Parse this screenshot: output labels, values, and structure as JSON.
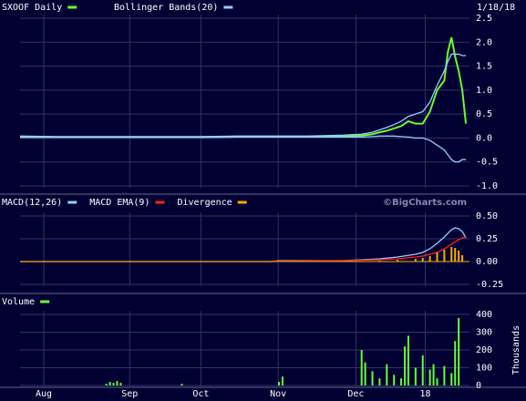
{
  "chart_data": [
    {
      "type": "line",
      "title": "SXOOF Daily",
      "date": "1/18/18",
      "x": [
        0,
        10,
        20,
        30,
        40,
        50,
        60,
        70,
        80,
        90,
        95,
        98,
        100,
        102,
        104,
        106,
        108,
        110,
        112,
        114,
        116,
        118,
        119,
        120,
        121,
        122,
        123,
        124
      ],
      "series": [
        {
          "name": "SXOOF Daily",
          "color": "#66ff33",
          "values": [
            0.03,
            0.02,
            0.02,
            0.02,
            0.02,
            0.02,
            0.03,
            0.03,
            0.03,
            0.04,
            0.05,
            0.08,
            0.12,
            0.15,
            0.2,
            0.25,
            0.35,
            0.3,
            0.3,
            0.55,
            1.0,
            1.2,
            1.8,
            2.1,
            1.7,
            1.4,
            1.0,
            0.3
          ]
        },
        {
          "name": "Bollinger Bands(20)",
          "color": "#99ccff",
          "values": [
            0.04,
            0.03,
            0.03,
            0.03,
            0.03,
            0.03,
            0.04,
            0.04,
            0.04,
            0.06,
            0.08,
            0.12,
            0.17,
            0.22,
            0.28,
            0.35,
            0.45,
            0.5,
            0.55,
            0.75,
            1.1,
            1.4,
            1.6,
            1.75,
            1.75,
            1.75,
            1.72,
            1.72
          ]
        },
        {
          "color": "#99ccff",
          "values": [
            0.01,
            0.01,
            0.01,
            0.01,
            0.01,
            0.01,
            0.02,
            0.02,
            0.02,
            0.02,
            0.02,
            0.03,
            0.04,
            0.04,
            0.04,
            0.03,
            0.02,
            0,
            0,
            -0.05,
            -0.15,
            -0.25,
            -0.35,
            -0.45,
            -0.5,
            -0.5,
            -0.45,
            -0.45
          ]
        }
      ],
      "ylim": [
        -1.0,
        2.5
      ],
      "yticks": [
        2.5,
        {
          "value": 2,
          "label": "2.0"
        },
        1.5,
        {
          "value": 1,
          "label": "1.0"
        },
        0.5,
        {
          "value": 0,
          "label": "0.0"
        },
        -0.5,
        {
          "value": -1,
          "label": "-1.0"
        }
      ]
    },
    {
      "type": "line",
      "watermark": "©BigCharts.com",
      "x": [
        0,
        70,
        72,
        90,
        100,
        105,
        110,
        112,
        114,
        116,
        118,
        120,
        121,
        122,
        123,
        124
      ],
      "series": [
        {
          "name": "MACD(12,26)",
          "color": "#99ccff",
          "values": [
            0,
            0,
            0.01,
            0.01,
            0.03,
            0.05,
            0.08,
            0.1,
            0.14,
            0.2,
            0.27,
            0.35,
            0.37,
            0.36,
            0.33,
            0.26
          ]
        },
        {
          "name": "MACD EMA(9)",
          "color": "#ff2020",
          "values": [
            0,
            0,
            0.005,
            0.01,
            0.02,
            0.03,
            0.05,
            0.06,
            0.08,
            0.1,
            0.14,
            0.19,
            0.22,
            0.24,
            0.26,
            0.27
          ]
        },
        {
          "name": "Divergence",
          "color": "#ffaa00",
          "mark": "bar",
          "values": [
            0,
            0,
            0.005,
            0,
            0.01,
            0.02,
            0.03,
            0.04,
            0.06,
            0.1,
            0.13,
            0.16,
            0.15,
            0.12,
            0.07,
            0
          ]
        }
      ],
      "ylim": [
        -0.25,
        0.5
      ],
      "yticks": [
        {
          "value": 0.5,
          "label": "0.50"
        },
        0.25,
        {
          "value": 0,
          "label": "0.00"
        },
        -0.25
      ]
    },
    {
      "type": "bar",
      "ylabel": "Thousands",
      "x": [
        24,
        25,
        26,
        27,
        28,
        45,
        72,
        73,
        95,
        96,
        98,
        100,
        102,
        104,
        106,
        107,
        108,
        110,
        112,
        114,
        115,
        116,
        118,
        120,
        121,
        122
      ],
      "series": [
        {
          "name": "Volume",
          "color": "#66ff33",
          "values": [
            10,
            20,
            15,
            25,
            15,
            10,
            20,
            50,
            200,
            130,
            80,
            40,
            120,
            60,
            40,
            220,
            280,
            100,
            170,
            90,
            120,
            40,
            110,
            70,
            250,
            380
          ]
        }
      ],
      "ylim": [
        0,
        400
      ],
      "yticks": [
        0,
        100,
        200,
        300,
        400
      ],
      "xlim": [
        0,
        125
      ],
      "xticks": [
        {
          "value": 6.6,
          "label": "Aug"
        },
        {
          "value": 30.5,
          "label": "Sep"
        },
        {
          "value": 50.3,
          "label": "Oct"
        },
        {
          "value": 71.8,
          "label": "Nov"
        },
        {
          "value": 93.4,
          "label": "Dec"
        },
        {
          "value": 112.7,
          "label": "18"
        }
      ]
    }
  ]
}
